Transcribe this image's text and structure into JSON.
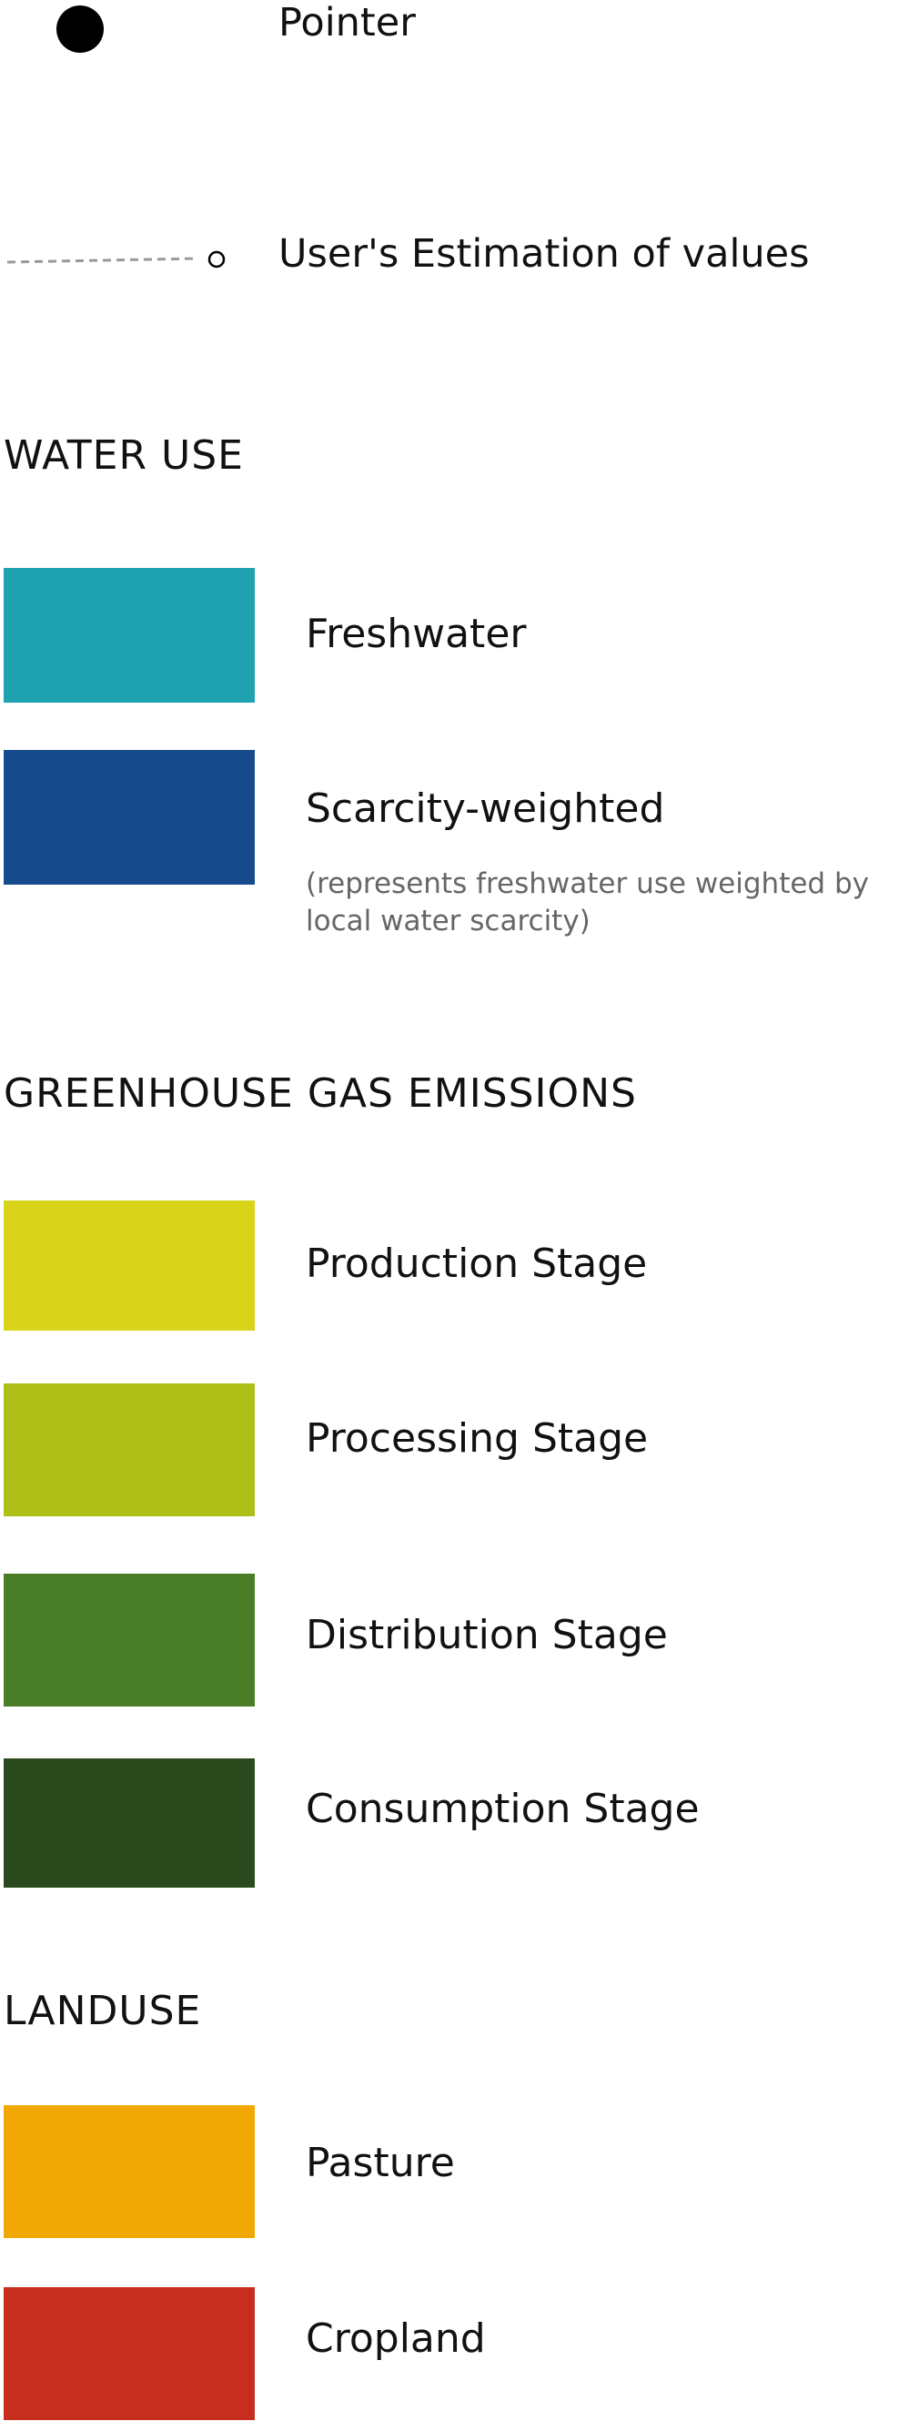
{
  "chart_data": {
    "type": "legend",
    "markers": {
      "pointer": {
        "label": "Pointer",
        "symbol": "filled-circle",
        "color": "#000000"
      },
      "estimate": {
        "label": "User's Estimation of values",
        "symbol": "dashed-line-open-circle",
        "color": "#999999"
      }
    },
    "sections": [
      {
        "title": "WATER USE",
        "items": [
          {
            "label": "Freshwater",
            "color": "#1fa3b0"
          },
          {
            "label": "Scarcity-weighted",
            "color": "#174a8c",
            "note": "(represents freshwater use weighted by local water scarcity)"
          }
        ]
      },
      {
        "title": "GREENHOUSE GAS EMISSIONS",
        "items": [
          {
            "label": "Production Stage",
            "color": "#d9d41a"
          },
          {
            "label": "Processing Stage",
            "color": "#aec018"
          },
          {
            "label": "Distribution Stage",
            "color": "#4a7d27"
          },
          {
            "label": "Consumption Stage",
            "color": "#2a4a1d"
          }
        ]
      },
      {
        "title": "LANDUSE",
        "items": [
          {
            "label": "Pasture",
            "color": "#f2a804"
          },
          {
            "label": "Cropland",
            "color": "#c72e1e"
          }
        ]
      }
    ]
  }
}
